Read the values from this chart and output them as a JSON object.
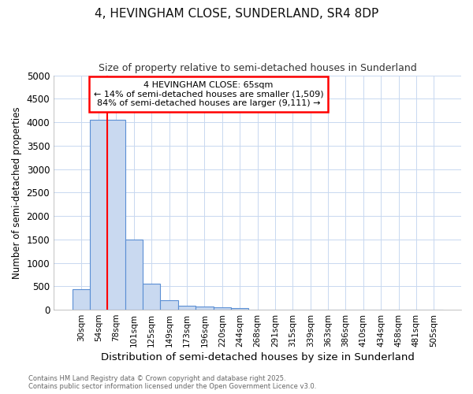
{
  "title": "4, HEVINGHAM CLOSE, SUNDERLAND, SR4 8DP",
  "subtitle": "Size of property relative to semi-detached houses in Sunderland",
  "xlabel": "Distribution of semi-detached houses by size in Sunderland",
  "ylabel": "Number of semi-detached properties",
  "bar_labels": [
    "30sqm",
    "54sqm",
    "78sqm",
    "101sqm",
    "125sqm",
    "149sqm",
    "173sqm",
    "196sqm",
    "220sqm",
    "244sqm",
    "268sqm",
    "291sqm",
    "315sqm",
    "339sqm",
    "363sqm",
    "386sqm",
    "410sqm",
    "434sqm",
    "458sqm",
    "481sqm",
    "505sqm"
  ],
  "bar_values": [
    430,
    4050,
    4050,
    1500,
    560,
    200,
    90,
    65,
    55,
    35,
    0,
    0,
    0,
    0,
    0,
    0,
    0,
    0,
    0,
    0,
    0
  ],
  "bar_color": "#c9d9f0",
  "bar_edge_color": "#5b8fd4",
  "ylim": [
    0,
    5000
  ],
  "yticks": [
    0,
    500,
    1000,
    1500,
    2000,
    2500,
    3000,
    3500,
    4000,
    4500,
    5000
  ],
  "red_line_x": 1.5,
  "annotation_text_line1": "4 HEVINGHAM CLOSE: 65sqm",
  "annotation_text_line2": "← 14% of semi-detached houses are smaller (1,509)",
  "annotation_text_line3": "84% of semi-detached houses are larger (9,111) →",
  "footnote_line1": "Contains HM Land Registry data © Crown copyright and database right 2025.",
  "footnote_line2": "Contains public sector information licensed under the Open Government Licence v3.0.",
  "background_color": "#ffffff",
  "grid_color": "#c8d8f0"
}
